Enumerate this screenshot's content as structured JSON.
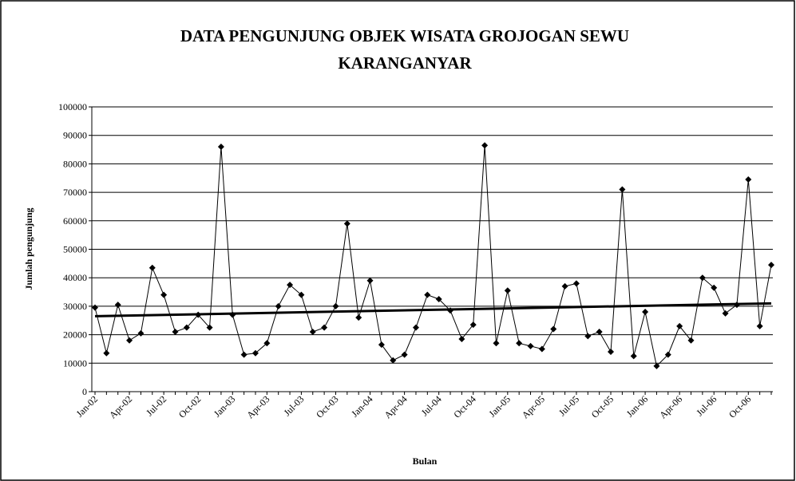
{
  "chart_data": {
    "type": "line",
    "title": [
      "DATA PENGUNJUNG OBJEK WISATA GROJOGAN SEWU",
      "KARANGANYAR"
    ],
    "x_label": "Bulan",
    "y_label": "Jumlah pengunjung",
    "categories": [
      "Jan-02",
      null,
      null,
      "Apr-02",
      null,
      null,
      "Jul-02",
      null,
      null,
      "Oct-02",
      null,
      null,
      "Jan-03",
      null,
      null,
      "Apr-03",
      null,
      null,
      "Jul-03",
      null,
      null,
      "Oct-03",
      null,
      null,
      "Jan-04",
      null,
      null,
      "Apr-04",
      null,
      null,
      "Jul-04",
      null,
      null,
      "Oct-04",
      null,
      null,
      "Jan-05",
      null,
      null,
      "Apr-05",
      null,
      null,
      "Jul-05",
      null,
      null,
      "Oct-05",
      null,
      null,
      "Jan-06",
      null,
      null,
      "Apr-06",
      null,
      null,
      "Jul-06",
      null,
      null,
      "Oct-06",
      null,
      null
    ],
    "values": [
      29500,
      13500,
      30500,
      18000,
      20500,
      43500,
      34000,
      21000,
      22500,
      27000,
      22500,
      86000,
      27000,
      13000,
      13500,
      17000,
      30000,
      37500,
      34000,
      21000,
      22500,
      30000,
      59000,
      26000,
      39000,
      16500,
      11000,
      13000,
      22500,
      34000,
      32500,
      28500,
      18500,
      23500,
      86500,
      17000,
      35500,
      17000,
      16000,
      15000,
      22000,
      37000,
      38000,
      19500,
      21000,
      14000,
      71000,
      12500,
      28000,
      9000,
      13000,
      23000,
      18000,
      40000,
      36500,
      27500,
      30500,
      74500,
      23000,
      44500
    ],
    "color": "#000000",
    "trendline": [
      26500,
      31000
    ],
    "ylim": [
      0,
      100000
    ],
    "yticks": [
      0,
      10000,
      20000,
      30000,
      40000,
      50000,
      60000,
      70000,
      80000,
      90000,
      100000
    ],
    "grid": true
  }
}
